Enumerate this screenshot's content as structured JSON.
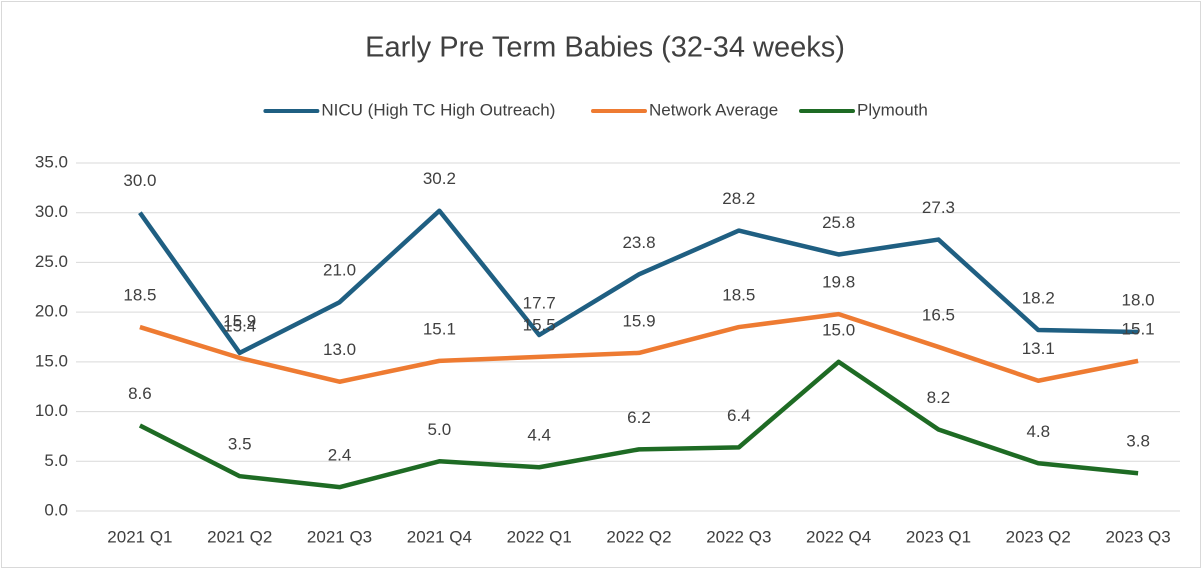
{
  "chart_data": {
    "type": "line",
    "title": "Early Pre Term Babies (32-34 weeks)",
    "categories": [
      "2021 Q1",
      "2021 Q2",
      "2021 Q3",
      "2021 Q4",
      "2022 Q1",
      "2022 Q2",
      "2022 Q3",
      "2022 Q4",
      "2023 Q1",
      "2023 Q2",
      "2023 Q3"
    ],
    "series": [
      {
        "name": "NICU (High TC High Outreach)",
        "color": "#1f5f82",
        "values": [
          30.0,
          15.9,
          21.0,
          30.2,
          17.7,
          23.8,
          28.2,
          25.8,
          27.3,
          18.2,
          18.0
        ],
        "value_labels": [
          "30.0",
          "15.9",
          "21.0",
          "30.2",
          "17.7",
          "23.8",
          "28.2",
          "25.8",
          "27.3",
          "18.2",
          "18.0"
        ]
      },
      {
        "name": "Network Average",
        "color": "#ee7b32",
        "values": [
          18.5,
          15.4,
          13.0,
          15.1,
          15.5,
          15.9,
          18.5,
          19.8,
          16.5,
          13.1,
          15.1
        ],
        "value_labels": [
          "18.5",
          "15.4",
          "13.0",
          "15.1",
          "15.5",
          "15.9",
          "18.5",
          "19.8",
          "16.5",
          "13.1",
          "15.1"
        ]
      },
      {
        "name": "Plymouth",
        "color": "#1e6b24",
        "values": [
          8.6,
          3.5,
          2.4,
          5.0,
          4.4,
          6.2,
          6.4,
          15.0,
          8.2,
          4.8,
          3.8
        ],
        "value_labels": [
          "8.6",
          "3.5",
          "2.4",
          "5.0",
          "4.4",
          "6.2",
          "6.4",
          "15.0",
          "8.2",
          "4.8",
          "3.8"
        ]
      }
    ],
    "ylim": [
      0,
      35
    ],
    "yticks": [
      {
        "value": 0,
        "label": "0.0"
      },
      {
        "value": 5,
        "label": "5.0"
      },
      {
        "value": 10,
        "label": "10.0"
      },
      {
        "value": 15,
        "label": "15.0"
      },
      {
        "value": 20,
        "label": "20.0"
      },
      {
        "value": 25,
        "label": "25.0"
      },
      {
        "value": 30,
        "label": "30.0"
      },
      {
        "value": 35,
        "label": "35.0"
      }
    ],
    "grid": true,
    "legend": "top"
  }
}
